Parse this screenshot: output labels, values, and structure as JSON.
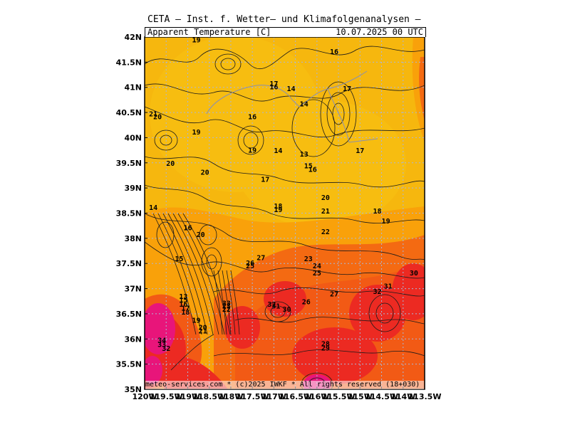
{
  "header": {
    "title": "CETA — Inst. f. Wetter— und Klimafolgenanalysen —",
    "variable": "Apparent Temperature [C]",
    "valid_time": "10.07.2025 00 UTC"
  },
  "footer": {
    "credit": "meteo-services.com * (c)2025 IWKF * All rights reserved (18+030)"
  },
  "axes": {
    "lat_labels": [
      "42N",
      "41.5N",
      "41N",
      "40.5N",
      "40N",
      "39.5N",
      "39N",
      "38.5N",
      "38N",
      "37.5N",
      "37N",
      "36.5N",
      "36N",
      "35.5N",
      "35N"
    ],
    "lon_labels": [
      "120W",
      "119.5W",
      "119W",
      "118.5W",
      "118W",
      "117.5W",
      "117W",
      "116.5W",
      "116W",
      "115.5W",
      "115W",
      "114.5W",
      "114W",
      "113.5W"
    ]
  },
  "colors": {
    "cool": "#f6b70e",
    "warm": "#f9a10a",
    "hot": "#f46a12",
    "very_hot": "#ec2a22",
    "extreme": "#e8157a",
    "grid": "#aab6d8",
    "contour": "#1a1a1a"
  },
  "contour_labels": [
    {
      "v": "19",
      "lon": -118.8,
      "lat": 41.95
    },
    {
      "v": "16",
      "lon": -115.6,
      "lat": 41.72
    },
    {
      "v": "17",
      "lon": -117.0,
      "lat": 41.08
    },
    {
      "v": "16",
      "lon": -117.0,
      "lat": 41.02
    },
    {
      "v": "14",
      "lon": -116.6,
      "lat": 40.98
    },
    {
      "v": "17",
      "lon": -115.3,
      "lat": 40.98
    },
    {
      "v": "14",
      "lon": -116.3,
      "lat": 40.68
    },
    {
      "v": "21",
      "lon": -119.8,
      "lat": 40.48
    },
    {
      "v": "20",
      "lon": -119.7,
      "lat": 40.42
    },
    {
      "v": "16",
      "lon": -117.5,
      "lat": 40.42
    },
    {
      "v": "19",
      "lon": -118.8,
      "lat": 40.12
    },
    {
      "v": "19",
      "lon": -117.5,
      "lat": 39.76
    },
    {
      "v": "14",
      "lon": -116.9,
      "lat": 39.75
    },
    {
      "v": "13",
      "lon": -116.3,
      "lat": 39.68
    },
    {
      "v": "17",
      "lon": -115.0,
      "lat": 39.75
    },
    {
      "v": "20",
      "lon": -119.4,
      "lat": 39.5
    },
    {
      "v": "15",
      "lon": -116.2,
      "lat": 39.45
    },
    {
      "v": "16",
      "lon": -116.1,
      "lat": 39.38
    },
    {
      "v": "20",
      "lon": -118.6,
      "lat": 39.32
    },
    {
      "v": "17",
      "lon": -117.2,
      "lat": 39.18
    },
    {
      "v": "20",
      "lon": -115.8,
      "lat": 38.82
    },
    {
      "v": "14",
      "lon": -119.8,
      "lat": 38.62
    },
    {
      "v": "18",
      "lon": -116.9,
      "lat": 38.65
    },
    {
      "v": "19",
      "lon": -116.9,
      "lat": 38.58
    },
    {
      "v": "21",
      "lon": -115.8,
      "lat": 38.55
    },
    {
      "v": "18",
      "lon": -114.6,
      "lat": 38.55
    },
    {
      "v": "19",
      "lon": -114.4,
      "lat": 38.35
    },
    {
      "v": "16",
      "lon": -119.0,
      "lat": 38.22
    },
    {
      "v": "20",
      "lon": -118.7,
      "lat": 38.08
    },
    {
      "v": "22",
      "lon": -115.8,
      "lat": 38.14
    },
    {
      "v": "15",
      "lon": -119.2,
      "lat": 37.6
    },
    {
      "v": "27",
      "lon": -117.3,
      "lat": 37.62
    },
    {
      "v": "23",
      "lon": -116.2,
      "lat": 37.6
    },
    {
      "v": "26",
      "lon": -117.55,
      "lat": 37.52
    },
    {
      "v": "25",
      "lon": -117.55,
      "lat": 37.46
    },
    {
      "v": "24",
      "lon": -116.0,
      "lat": 37.46
    },
    {
      "v": "25",
      "lon": -116.0,
      "lat": 37.32
    },
    {
      "v": "30",
      "lon": -113.75,
      "lat": 37.32
    },
    {
      "v": "31",
      "lon": -114.35,
      "lat": 37.06
    },
    {
      "v": "32",
      "lon": -114.6,
      "lat": 36.95
    },
    {
      "v": "27",
      "lon": -115.6,
      "lat": 36.9
    },
    {
      "v": "13",
      "lon": -119.1,
      "lat": 36.85
    },
    {
      "v": "15",
      "lon": -119.1,
      "lat": 36.78
    },
    {
      "v": "16",
      "lon": -119.1,
      "lat": 36.7
    },
    {
      "v": "17",
      "lon": -119.05,
      "lat": 36.62
    },
    {
      "v": "18",
      "lon": -119.05,
      "lat": 36.54
    },
    {
      "v": "26",
      "lon": -116.25,
      "lat": 36.75
    },
    {
      "v": "33",
      "lon": -118.1,
      "lat": 36.72
    },
    {
      "v": "23",
      "lon": -118.1,
      "lat": 36.66
    },
    {
      "v": "22",
      "lon": -118.1,
      "lat": 36.6
    },
    {
      "v": "32",
      "lon": -117.05,
      "lat": 36.7
    },
    {
      "v": "31",
      "lon": -116.95,
      "lat": 36.66
    },
    {
      "v": "30",
      "lon": -116.7,
      "lat": 36.6
    },
    {
      "v": "19",
      "lon": -118.8,
      "lat": 36.38
    },
    {
      "v": "20",
      "lon": -118.65,
      "lat": 36.24
    },
    {
      "v": "21",
      "lon": -118.65,
      "lat": 36.17
    },
    {
      "v": "34",
      "lon": -119.6,
      "lat": 35.98
    },
    {
      "v": "33",
      "lon": -119.6,
      "lat": 35.9
    },
    {
      "v": "32",
      "lon": -119.5,
      "lat": 35.82
    },
    {
      "v": "28",
      "lon": -115.8,
      "lat": 35.91
    },
    {
      "v": "29",
      "lon": -115.8,
      "lat": 35.83
    }
  ]
}
